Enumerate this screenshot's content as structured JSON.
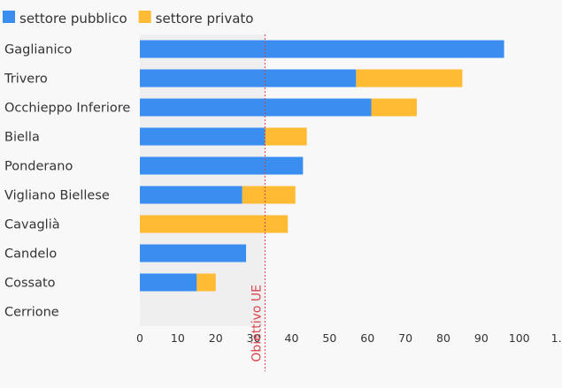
{
  "chart_data": {
    "type": "bar",
    "orientation": "horizontal",
    "stacked": true,
    "categories": [
      "Gaglianico",
      "Trivero",
      "Occhieppo Inferiore",
      "Biella",
      "Ponderano",
      "Vigliano Biellese",
      "Cavaglià",
      "Candelo",
      "Cossato",
      "Cerrione"
    ],
    "series": [
      {
        "name": "settore pubblico",
        "color": "#3a8ef0",
        "values": [
          96,
          57,
          61,
          33,
          43,
          27,
          0,
          28,
          15,
          0
        ]
      },
      {
        "name": "settore privato",
        "color": "#ffbb33",
        "values": [
          0,
          28,
          12,
          11,
          0,
          14,
          39,
          0,
          5,
          0
        ]
      }
    ],
    "xlim": [
      0,
      110
    ],
    "xticks": [
      "0",
      "10",
      "20",
      "30",
      "40",
      "50",
      "60",
      "70",
      "80",
      "90",
      "100",
      "1…"
    ],
    "legend_position": "top-left",
    "annotation": {
      "label": "Obiettivo UE",
      "x": 33
    },
    "title": "",
    "xlabel": "",
    "ylabel": ""
  }
}
